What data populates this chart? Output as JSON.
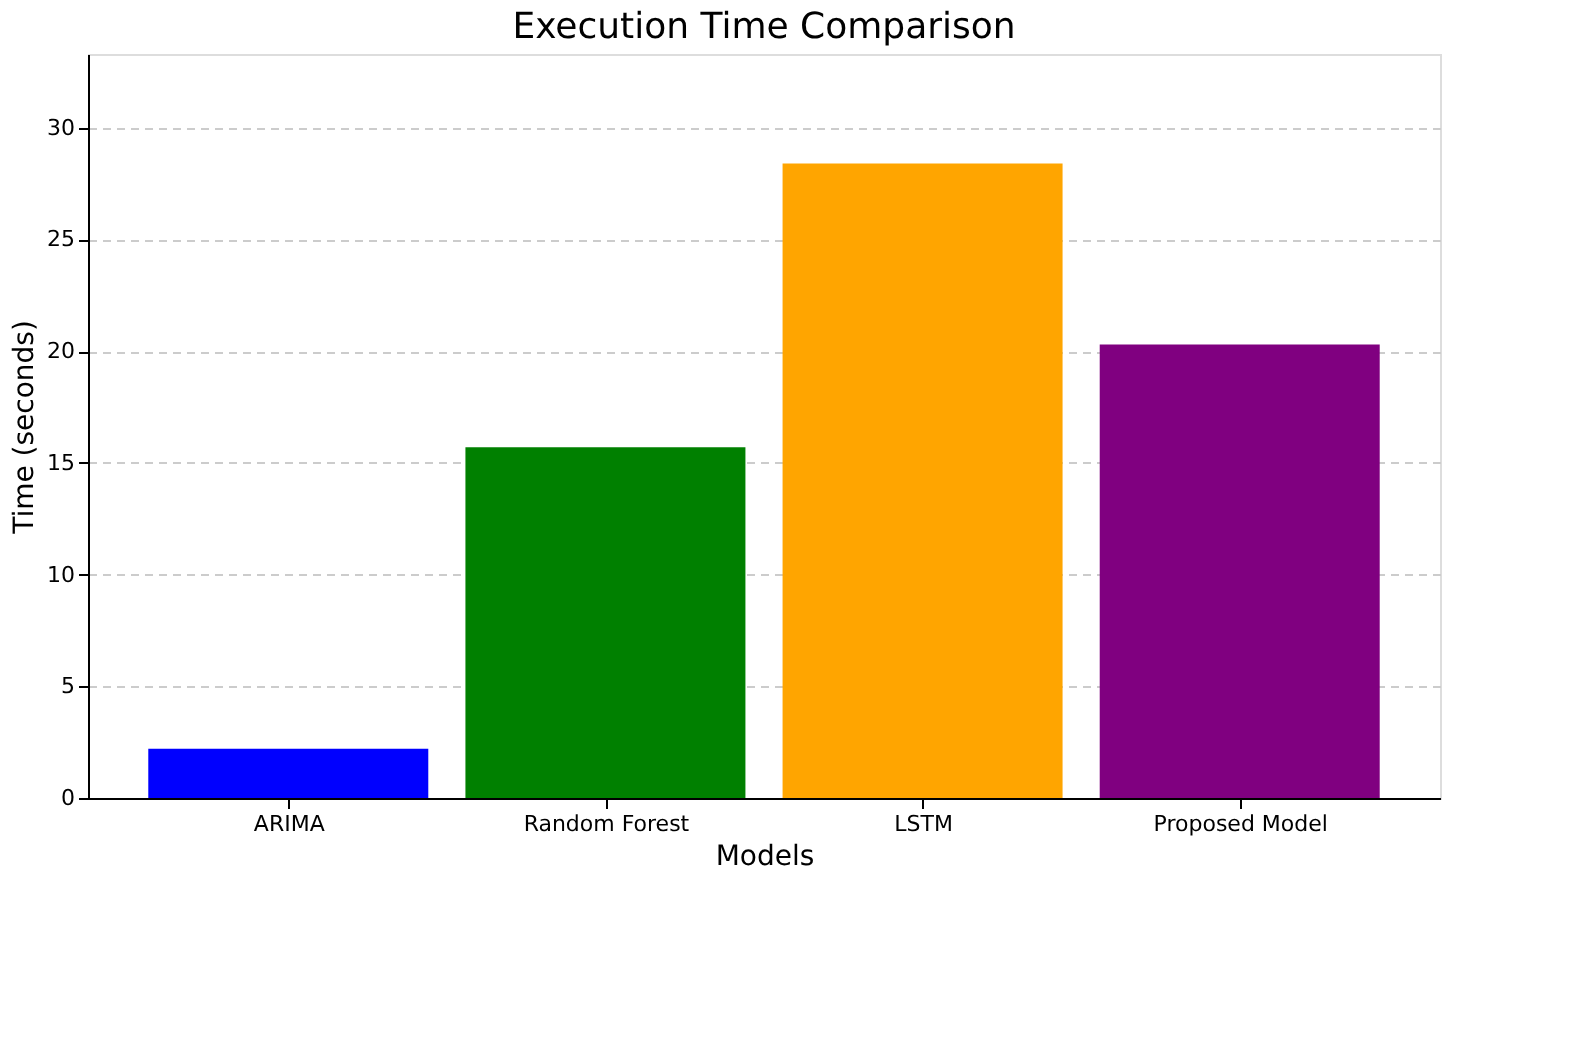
{
  "chart_data": {
    "type": "bar",
    "title": "Execution Time Comparison",
    "xlabel": "Models",
    "ylabel": "Time (seconds)",
    "categories": [
      "ARIMA",
      "Random Forest",
      "LSTM",
      "Proposed Model"
    ],
    "values": [
      2.2,
      15.7,
      28.4,
      20.3
    ],
    "colors": [
      "#0000ff",
      "#008000",
      "#ffa500",
      "#800080"
    ],
    "ylim": [
      0,
      33.3
    ],
    "yticks": [
      0,
      5,
      10,
      15,
      20,
      25,
      30
    ],
    "grid": "y"
  }
}
